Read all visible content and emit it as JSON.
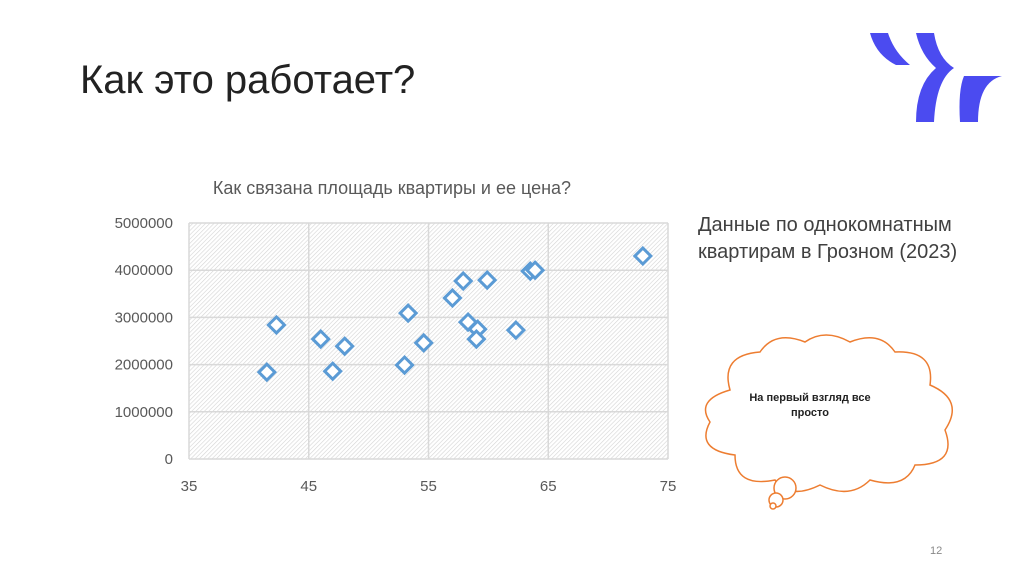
{
  "slide": {
    "title": "Как это работает?",
    "page_number": "12"
  },
  "description": "Данные по однокомнатным квартирам в Грозном (2023)",
  "callout": {
    "text": "На первый взгляд все просто",
    "border_color": "#ED7D31"
  },
  "colors": {
    "marker": "#5B9BD5",
    "logo": "#4B4BF0"
  },
  "chart_data": {
    "type": "scatter",
    "title": "Как связана площадь квартиры и ее цена?",
    "xlabel": "",
    "ylabel": "",
    "xlim": [
      35,
      75
    ],
    "ylim": [
      0,
      5000000
    ],
    "x_ticks": [
      "35",
      "45",
      "55",
      "65",
      "75"
    ],
    "y_ticks": [
      "0",
      "1000000",
      "2000000",
      "3000000",
      "4000000",
      "5000000"
    ],
    "grid": true,
    "legend": "none",
    "marker": "diamond",
    "points": [
      {
        "x": 41.5,
        "y": 1840000
      },
      {
        "x": 42.3,
        "y": 2840000
      },
      {
        "x": 46.0,
        "y": 2540000
      },
      {
        "x": 47.0,
        "y": 1860000
      },
      {
        "x": 48.0,
        "y": 2390000
      },
      {
        "x": 53.0,
        "y": 1990000
      },
      {
        "x": 53.3,
        "y": 3090000
      },
      {
        "x": 54.6,
        "y": 2460000
      },
      {
        "x": 57.0,
        "y": 3410000
      },
      {
        "x": 57.9,
        "y": 3770000
      },
      {
        "x": 58.3,
        "y": 2900000
      },
      {
        "x": 59.1,
        "y": 2750000
      },
      {
        "x": 59.0,
        "y": 2540000
      },
      {
        "x": 59.9,
        "y": 3790000
      },
      {
        "x": 62.3,
        "y": 2730000
      },
      {
        "x": 63.5,
        "y": 3980000
      },
      {
        "x": 63.9,
        "y": 4000000
      },
      {
        "x": 72.9,
        "y": 4300000
      }
    ]
  }
}
